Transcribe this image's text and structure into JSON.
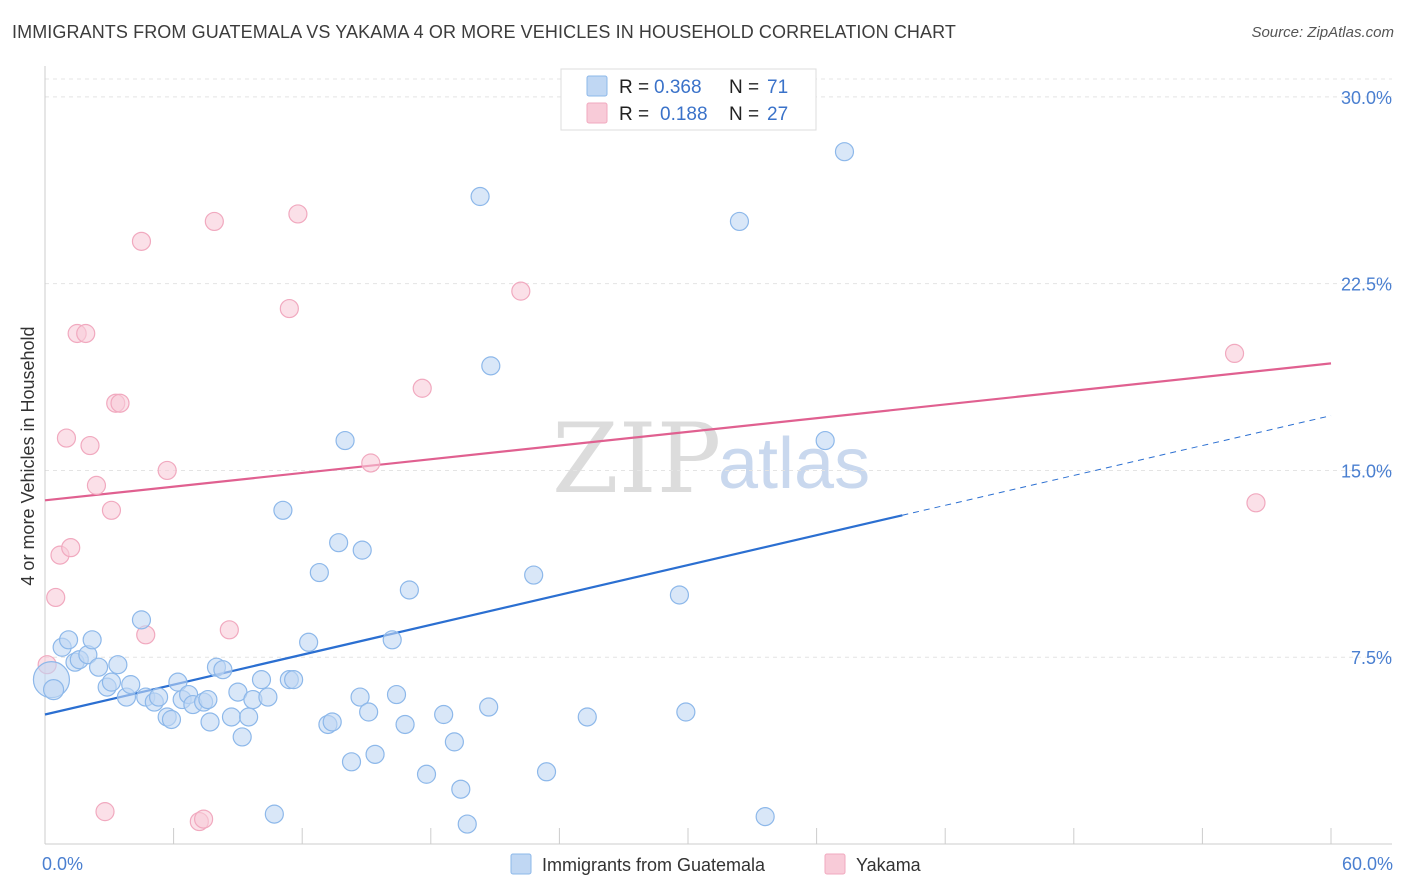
{
  "title": "IMMIGRANTS FROM GUATEMALA VS YAKAMA 4 OR MORE VEHICLES IN HOUSEHOLD CORRELATION CHART",
  "source": "Source: ZipAtlas.com",
  "watermark": {
    "zip": "ZIP",
    "atlas": "atlas"
  },
  "chart_data": {
    "type": "scatter",
    "ylabel": "4 or more Vehicles in Household",
    "xlim": [
      0,
      60
    ],
    "ylim": [
      0,
      31
    ],
    "x_tick_labels": [
      {
        "value": 0,
        "label": "0.0%"
      },
      {
        "value": 60,
        "label": "60.0%"
      }
    ],
    "x_minor_ticks": [
      6,
      12,
      18,
      24,
      30,
      36,
      42,
      48,
      54,
      60
    ],
    "y_ticks": [
      {
        "value": 7.5,
        "label": "7.5%"
      },
      {
        "value": 15.0,
        "label": "15.0%"
      },
      {
        "value": 22.5,
        "label": "22.5%"
      },
      {
        "value": 30.0,
        "label": "30.0%"
      }
    ],
    "series": [
      {
        "name": "Immigrants from Guatemala",
        "color": "#8db8ea",
        "fill": "#c0d7f3",
        "line_color": "#2b6fd1",
        "R": "0.368",
        "N": "71",
        "trend": {
          "x0": 0,
          "y0": 5.2,
          "x1": 40,
          "y1": 13.2,
          "x_dash_end": 60,
          "y_dash_end": 17.2
        },
        "points": [
          [
            0.3,
            6.6,
            18
          ],
          [
            0.4,
            6.2,
            10
          ],
          [
            0.8,
            7.9,
            9
          ],
          [
            1.1,
            8.2,
            9
          ],
          [
            1.4,
            7.3,
            9
          ],
          [
            1.6,
            7.4,
            9
          ],
          [
            2.0,
            7.6,
            9
          ],
          [
            2.2,
            8.2,
            9
          ],
          [
            2.5,
            7.1,
            9
          ],
          [
            2.9,
            6.3,
            9
          ],
          [
            3.1,
            6.5,
            9
          ],
          [
            3.4,
            7.2,
            9
          ],
          [
            3.8,
            5.9,
            9
          ],
          [
            4.0,
            6.4,
            9
          ],
          [
            4.5,
            9.0,
            9
          ],
          [
            4.7,
            5.9,
            9
          ],
          [
            5.1,
            5.7,
            9
          ],
          [
            5.3,
            5.9,
            9
          ],
          [
            5.7,
            5.1,
            9
          ],
          [
            5.9,
            5.0,
            9
          ],
          [
            6.2,
            6.5,
            9
          ],
          [
            6.4,
            5.8,
            9
          ],
          [
            6.7,
            6.0,
            9
          ],
          [
            6.9,
            5.6,
            9
          ],
          [
            7.4,
            5.7,
            9
          ],
          [
            7.6,
            5.8,
            9
          ],
          [
            7.7,
            4.9,
            9
          ],
          [
            8.0,
            7.1,
            9
          ],
          [
            8.3,
            7.0,
            9
          ],
          [
            8.7,
            5.1,
            9
          ],
          [
            9.0,
            6.1,
            9
          ],
          [
            9.2,
            4.3,
            9
          ],
          [
            9.5,
            5.1,
            9
          ],
          [
            9.7,
            5.8,
            9
          ],
          [
            10.1,
            6.6,
            9
          ],
          [
            10.4,
            5.9,
            9
          ],
          [
            10.7,
            1.2,
            9
          ],
          [
            11.1,
            13.4,
            9
          ],
          [
            11.4,
            6.6,
            9
          ],
          [
            11.6,
            6.6,
            9
          ],
          [
            12.3,
            8.1,
            9
          ],
          [
            12.8,
            10.9,
            9
          ],
          [
            13.2,
            4.8,
            9
          ],
          [
            13.4,
            4.9,
            9
          ],
          [
            13.7,
            12.1,
            9
          ],
          [
            14.0,
            16.2,
            9
          ],
          [
            14.3,
            3.3,
            9
          ],
          [
            14.7,
            5.9,
            9
          ],
          [
            14.8,
            11.8,
            9
          ],
          [
            15.1,
            5.3,
            9
          ],
          [
            15.4,
            3.6,
            9
          ],
          [
            16.2,
            8.2,
            9
          ],
          [
            16.4,
            6.0,
            9
          ],
          [
            16.8,
            4.8,
            9
          ],
          [
            17.0,
            10.2,
            9
          ],
          [
            17.8,
            2.8,
            9
          ],
          [
            18.6,
            5.2,
            9
          ],
          [
            19.1,
            4.1,
            9
          ],
          [
            19.4,
            2.2,
            9
          ],
          [
            19.7,
            0.8,
            9
          ],
          [
            20.3,
            26.0,
            9
          ],
          [
            20.7,
            5.5,
            9
          ],
          [
            20.8,
            19.2,
            9
          ],
          [
            22.8,
            10.8,
            9
          ],
          [
            23.4,
            2.9,
            9
          ],
          [
            25.3,
            5.1,
            9
          ],
          [
            29.6,
            10.0,
            9
          ],
          [
            29.9,
            5.3,
            9
          ],
          [
            32.4,
            25.0,
            9
          ],
          [
            33.6,
            1.1,
            9
          ],
          [
            36.4,
            16.2,
            9
          ],
          [
            37.3,
            27.8,
            9
          ]
        ]
      },
      {
        "name": "Yakama",
        "color": "#f1a9bf",
        "fill": "#f8cbd8",
        "line_color": "#e06090",
        "R": "0.188",
        "N": "27",
        "trend": {
          "x0": 0,
          "y0": 13.8,
          "x1": 60,
          "y1": 19.3
        },
        "points": [
          [
            0.1,
            7.2,
            9
          ],
          [
            0.5,
            9.9,
            9
          ],
          [
            0.7,
            11.6,
            9
          ],
          [
            1.0,
            16.3,
            9
          ],
          [
            1.2,
            11.9,
            9
          ],
          [
            1.5,
            20.5,
            9
          ],
          [
            1.9,
            20.5,
            9
          ],
          [
            2.1,
            16.0,
            9
          ],
          [
            2.4,
            14.4,
            9
          ],
          [
            2.8,
            1.3,
            9
          ],
          [
            3.1,
            13.4,
            9
          ],
          [
            3.3,
            17.7,
            9
          ],
          [
            3.5,
            17.7,
            9
          ],
          [
            4.5,
            24.2,
            9
          ],
          [
            4.7,
            8.4,
            9
          ],
          [
            5.7,
            15.0,
            9
          ],
          [
            7.2,
            0.9,
            9
          ],
          [
            7.4,
            1.0,
            9
          ],
          [
            7.9,
            25.0,
            9
          ],
          [
            8.6,
            8.6,
            9
          ],
          [
            11.4,
            21.5,
            9
          ],
          [
            11.8,
            25.3,
            9
          ],
          [
            15.2,
            15.3,
            9
          ],
          [
            17.6,
            18.3,
            9
          ],
          [
            22.2,
            22.2,
            9
          ],
          [
            55.5,
            19.7,
            9
          ],
          [
            56.5,
            13.7,
            9
          ]
        ]
      }
    ]
  }
}
